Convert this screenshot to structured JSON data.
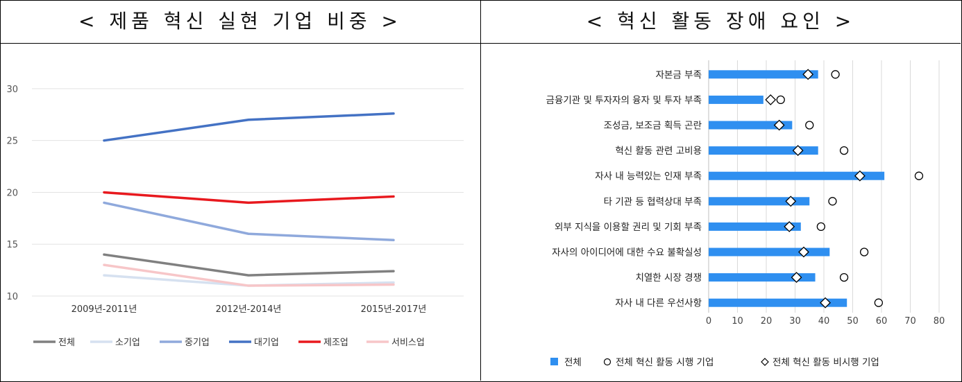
{
  "panels": {
    "left_title": "< 제품 혁신 실현 기업 비중 >",
    "right_title": "< 혁신 활동 장애 요인 >"
  },
  "chart_data": [
    {
      "type": "line",
      "title": "< 제품 혁신 실현 기업 비중 >",
      "categories": [
        "2009년-2011년",
        "2012년-2014년",
        "2015년-2017년"
      ],
      "yticks": [
        10,
        15,
        20,
        25,
        30
      ],
      "ylim": [
        10,
        32
      ],
      "grid": true,
      "legend_position": "bottom",
      "series": [
        {
          "name": "전체",
          "color": "#808080",
          "values": [
            14,
            12,
            12.4
          ]
        },
        {
          "name": "소기업",
          "color": "#d6e1f0",
          "values": [
            12,
            11,
            11.3
          ]
        },
        {
          "name": "중기업",
          "color": "#8fa9dc",
          "values": [
            19,
            16,
            15.4
          ]
        },
        {
          "name": "대기업",
          "color": "#4472c4",
          "values": [
            25,
            27,
            27.6
          ]
        },
        {
          "name": "제조업",
          "color": "#e8191e",
          "values": [
            20,
            19,
            19.6
          ]
        },
        {
          "name": "서비스업",
          "color": "#f7c6c8",
          "values": [
            13,
            11,
            11.1
          ]
        }
      ]
    },
    {
      "type": "bar",
      "orientation": "horizontal",
      "title": "< 혁신 활동 장애 요인 >",
      "categories": [
        "자본금 부족",
        "금융기관 및 투자자의 융자 및 투자 부족",
        "조성금, 보조금 획득 곤란",
        "혁신 활동 관련 고비용",
        "자사 내 능력있는 인재 부족",
        "타 기관 등 협력상대 부족",
        "외부 지식을 이용할 권리 및 기회 부족",
        "자사의 아이디어에 대한 수요 불확실성",
        "치열한 시장 경쟁",
        "자사 내 다른 우선사항"
      ],
      "xticks": [
        0,
        10,
        20,
        30,
        40,
        50,
        60,
        70,
        80
      ],
      "xlim": [
        0,
        80
      ],
      "grid": true,
      "legend_position": "bottom",
      "series": [
        {
          "name": "전체",
          "marker": "bar",
          "color": "#2f8ff0",
          "values": [
            38,
            19,
            29,
            38,
            61,
            35,
            32,
            42,
            37,
            48
          ]
        },
        {
          "name": "전체 혁신 활동 시행 기업",
          "marker": "circle",
          "color": "#000000",
          "values": [
            44,
            25,
            35,
            47,
            73,
            43,
            39,
            54,
            47,
            59
          ]
        },
        {
          "name": "전체 혁신 활동 비시행 기업",
          "marker": "diamond",
          "color": "#000000",
          "values": [
            34.5,
            21.5,
            24.5,
            31,
            52.5,
            28.5,
            28,
            33,
            30.5,
            40.5
          ]
        }
      ]
    }
  ]
}
